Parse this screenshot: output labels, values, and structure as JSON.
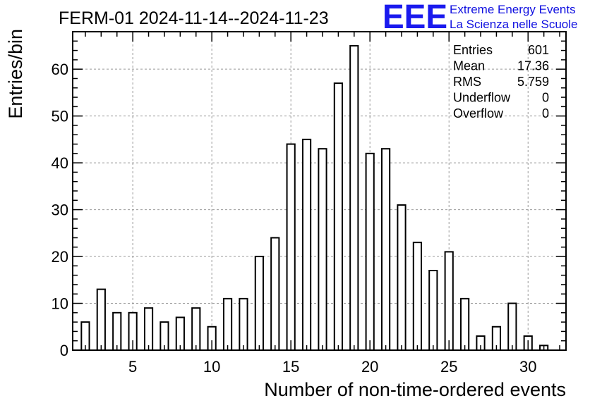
{
  "chart_data": {
    "type": "bar",
    "title": "FERM-01 2024-11-14--2024-11-23",
    "xlabel": "Number of non-time-ordered events",
    "ylabel": "Entries/bin",
    "xlim": [
      1.2,
      32.4
    ],
    "ylim": [
      0,
      68
    ],
    "grid": true,
    "x_ticks": [
      5,
      10,
      15,
      20,
      25,
      30
    ],
    "y_ticks": [
      0,
      10,
      20,
      30,
      40,
      50,
      60
    ],
    "bin_width": 0.5,
    "x": [
      2,
      3,
      4,
      5,
      6,
      7,
      8,
      9,
      10,
      11,
      12,
      13,
      14,
      15,
      16,
      17,
      18,
      19,
      20,
      21,
      22,
      23,
      24,
      25,
      26,
      27,
      28,
      29,
      30,
      31
    ],
    "values": [
      6,
      13,
      8,
      8,
      9,
      6,
      7,
      9,
      5,
      11,
      11,
      20,
      24,
      44,
      45,
      43,
      57,
      65,
      42,
      43,
      31,
      23,
      17,
      21,
      11,
      3,
      5,
      10,
      3,
      1
    ],
    "stats": {
      "rows": [
        {
          "label": "Entries",
          "value": "601"
        },
        {
          "label": "Mean",
          "value": "17.36"
        },
        {
          "label": "RMS",
          "value": "5.759"
        },
        {
          "label": "Underflow",
          "value": "0"
        },
        {
          "label": "Overflow",
          "value": "0"
        }
      ]
    },
    "logo": {
      "mark": "EEE",
      "line1": "Extreme Energy Events",
      "line2": "La Scienza nelle Scuole",
      "color": "#1a1aee"
    }
  }
}
